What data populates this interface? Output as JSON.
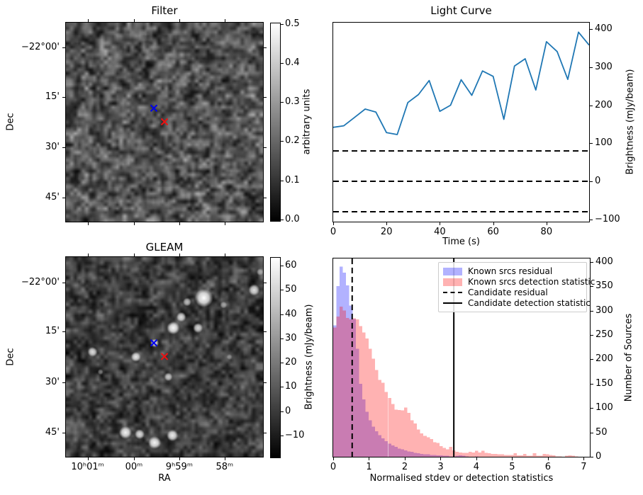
{
  "figure": {
    "background": "#ffffff"
  },
  "panels": {
    "filter": {
      "title": "Filter",
      "ylabel": "Dec",
      "y_tick_labels": [
        "−22°00'",
        "15'",
        "30'",
        "45'"
      ],
      "colorbar": {
        "label": "arbitrary units",
        "tick_labels": [
          "0.5",
          "0.4",
          "0.3",
          "0.2",
          "0.1",
          "0.0"
        ],
        "tick_values": [
          0.5,
          0.4,
          0.3,
          0.2,
          0.1,
          0.0
        ],
        "vmin": 0.0,
        "vmax": 0.5
      },
      "markers": [
        {
          "name": "blue-cross-marker",
          "symbol": "x",
          "color": "#0000ee",
          "fx": 0.446,
          "fy": 0.43
        },
        {
          "name": "red-cross-marker",
          "symbol": "x",
          "color": "#ee1111",
          "fx": 0.5,
          "fy": 0.498
        }
      ]
    },
    "gleam": {
      "title": "GLEAM",
      "xlabel": "RA",
      "ylabel": "Dec",
      "x_tick_labels": [
        "10ʰ01ᵐ",
        "00ᵐ",
        "9ʰ59ᵐ",
        "58ᵐ"
      ],
      "y_tick_labels": [
        "−22°00'",
        "15'",
        "30'",
        "45'"
      ],
      "colorbar": {
        "label": "Brightness (mJy/beam)",
        "tick_labels": [
          "60",
          "50",
          "40",
          "30",
          "20",
          "10",
          "0",
          "−10"
        ],
        "tick_values": [
          60,
          50,
          40,
          30,
          20,
          10,
          0,
          -10
        ],
        "vmin": -18.8,
        "vmax": 63.5
      },
      "markers": [
        {
          "name": "blue-cross-marker",
          "symbol": "x",
          "color": "#0000ee",
          "fx": 0.446,
          "fy": 0.43
        },
        {
          "name": "red-cross-marker",
          "symbol": "x",
          "color": "#ee1111",
          "fx": 0.5,
          "fy": 0.498
        }
      ],
      "sources": [
        {
          "fx": 0.7,
          "fy": 0.205,
          "r": 13,
          "a": 1.0
        },
        {
          "fx": 0.615,
          "fy": 0.225,
          "r": 6,
          "a": 0.7
        },
        {
          "fx": 0.585,
          "fy": 0.3,
          "r": 7,
          "a": 0.85
        },
        {
          "fx": 0.545,
          "fy": 0.355,
          "r": 9,
          "a": 0.95
        },
        {
          "fx": 0.67,
          "fy": 0.355,
          "r": 7,
          "a": 0.8
        },
        {
          "fx": 0.955,
          "fy": 0.165,
          "r": 8,
          "a": 0.85
        },
        {
          "fx": 0.985,
          "fy": 0.075,
          "r": 5,
          "a": 0.5
        },
        {
          "fx": 0.45,
          "fy": 0.43,
          "r": 6,
          "a": 0.9
        },
        {
          "fx": 0.135,
          "fy": 0.475,
          "r": 7,
          "a": 0.85
        },
        {
          "fx": 0.355,
          "fy": 0.5,
          "r": 7,
          "a": 0.9
        },
        {
          "fx": 0.52,
          "fy": 0.6,
          "r": 6,
          "a": 0.75
        },
        {
          "fx": 0.302,
          "fy": 0.879,
          "r": 9,
          "a": 0.95
        },
        {
          "fx": 0.374,
          "fy": 0.887,
          "r": 7,
          "a": 0.85
        },
        {
          "fx": 0.45,
          "fy": 0.929,
          "r": 9,
          "a": 0.95
        },
        {
          "fx": 0.54,
          "fy": 0.894,
          "r": 8,
          "a": 0.9
        },
        {
          "fx": 0.175,
          "fy": 0.575,
          "r": 4,
          "a": 0.4
        },
        {
          "fx": 0.83,
          "fy": 0.5,
          "r": 4,
          "a": 0.35
        },
        {
          "fx": 0.8,
          "fy": 0.24,
          "r": 5,
          "a": 0.5
        }
      ]
    }
  },
  "chart_data": [
    {
      "id": "light-curve",
      "type": "line",
      "title": "Light Curve",
      "xlabel": "Time (s)",
      "ylabel": "Brightness (mJy/beam)",
      "x": [
        0,
        4,
        8,
        12,
        16,
        20,
        24,
        28,
        32,
        36,
        40,
        44,
        48,
        52,
        56,
        60,
        64,
        68,
        72,
        76,
        80,
        84,
        88,
        92,
        96
      ],
      "y": [
        142,
        146,
        168,
        190,
        182,
        128,
        123,
        207,
        228,
        265,
        184,
        200,
        267,
        226,
        290,
        276,
        163,
        303,
        322,
        240,
        367,
        341,
        268,
        392,
        358
      ],
      "xlim": [
        0,
        96
      ],
      "ylim": [
        -106,
        417
      ],
      "x_ticks": [
        0,
        20,
        40,
        60,
        80
      ],
      "x_tick_labels": [
        "0",
        "20",
        "40",
        "60",
        "80"
      ],
      "y_ticks": [
        400,
        300,
        200,
        100,
        0,
        -100
      ],
      "y_tick_labels": [
        "400",
        "300",
        "200",
        "100",
        "0",
        "−100"
      ],
      "line_color": "#1f77b4",
      "hlines": {
        "values": [
          80,
          0,
          -80
        ],
        "style": "dashed",
        "color": "#000000"
      },
      "grid": false,
      "y_axis_side": "right"
    },
    {
      "id": "histogram",
      "type": "bar",
      "title": "",
      "xlabel": "Normalised stdev or detection statistics",
      "ylabel": "Number of Sources",
      "bin_start": 0,
      "bin_width": 0.09,
      "xlim": [
        0,
        7.17
      ],
      "ylim": [
        0,
        407
      ],
      "x_ticks": [
        0,
        1,
        2,
        3,
        4,
        5,
        6,
        7
      ],
      "x_tick_labels": [
        "0",
        "1",
        "2",
        "3",
        "4",
        "5",
        "6",
        "7"
      ],
      "y_ticks": [
        0,
        50,
        100,
        150,
        200,
        250,
        300,
        350,
        400
      ],
      "y_tick_labels": [
        "0",
        "50",
        "100",
        "150",
        "200",
        "250",
        "300",
        "350",
        "400"
      ],
      "series": [
        {
          "name": "Known srcs residual",
          "color": "#0000ff",
          "alpha": 0.3,
          "values": [
            270,
            350,
            390,
            378,
            352,
            310,
            283,
            222,
            150,
            118,
            92,
            75,
            62,
            52,
            44,
            38,
            32,
            27,
            23,
            20,
            17,
            15,
            13,
            11,
            10,
            8,
            7,
            6,
            5,
            5,
            4,
            4,
            3,
            3,
            2,
            2,
            1,
            1,
            2,
            3,
            2,
            1,
            0,
            0,
            1,
            0,
            0,
            0,
            0,
            0,
            0,
            0,
            0,
            0,
            0,
            0,
            0,
            0,
            0,
            0,
            0,
            0,
            0,
            0,
            0,
            0,
            0,
            0,
            0,
            0,
            0,
            0,
            0,
            0,
            0,
            0
          ]
        },
        {
          "name": "Known srcs detection statistic",
          "color": "#ff0000",
          "alpha": 0.3,
          "values": [
            265,
            288,
            308,
            300,
            285,
            282,
            284,
            282,
            268,
            255,
            243,
            222,
            201,
            178,
            158,
            152,
            133,
            121,
            108,
            97,
            96,
            95,
            101,
            90,
            75,
            68,
            56,
            48,
            43,
            40,
            36,
            30,
            28,
            22,
            18,
            15,
            20,
            13,
            10,
            9,
            8,
            8,
            10,
            9,
            12,
            9,
            12,
            8,
            7,
            6,
            6,
            5,
            5,
            4,
            4,
            4,
            7,
            3,
            3,
            6,
            2,
            2,
            7,
            2,
            2,
            6,
            5,
            4,
            3,
            1,
            1,
            0,
            2,
            3,
            2,
            1
          ]
        }
      ],
      "vlines": [
        {
          "label": "Candidate residual",
          "x": 0.53,
          "style": "dashed",
          "color": "#000000"
        },
        {
          "label": "Candidate detection statistic",
          "x": 3.37,
          "style": "solid",
          "color": "#000000"
        }
      ],
      "legend": {
        "position": "upper center-right",
        "items": [
          {
            "label": "Known srcs residual",
            "handle": "patch-blue"
          },
          {
            "label": "Known srcs detection statistic",
            "handle": "patch-red"
          },
          {
            "label": "Candidate residual",
            "handle": "dashed-line"
          },
          {
            "label": "Candidate detection statistic",
            "handle": "solid-line"
          }
        ]
      },
      "y_axis_side": "right"
    }
  ]
}
